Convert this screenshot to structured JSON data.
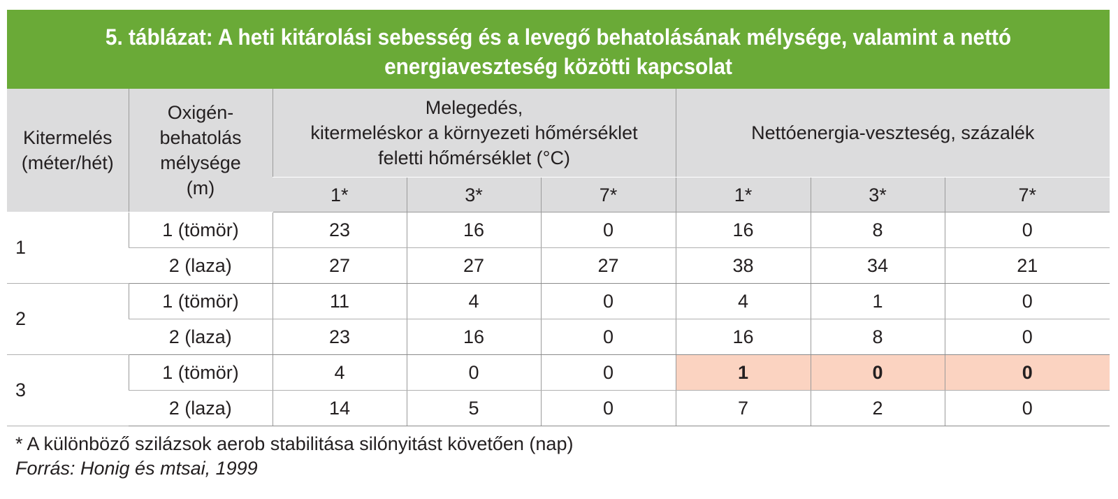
{
  "title": "5. táblázat: A heti kitárolási sebesség és a levegő behatolásának mélysége, valamint a nettó energiaveszteség közötti kapcsolat",
  "colors": {
    "title_bg": "#6aaa37",
    "header_bg": "#dcdcdd",
    "highlight": "#fbd3c1"
  },
  "headers": {
    "col1": "Kitermelés (méter/hét)",
    "col2": "Oxigén-behatolás mélysége (m)",
    "group1": "Melegedés, kitermeléskor a környezeti hőmérséklet feletti hőmérséklet (°C)",
    "group1_line1": "Melegedés,",
    "group1_line2": "kitermeléskor a környezeti hőmérséklet",
    "group1_line3": "feletti hőmérséklet (°C)",
    "group2": "Nettóenergia-veszteség, százalék",
    "sub": [
      "1*",
      "3*",
      "7*",
      "1*",
      "3*",
      "7*"
    ],
    "col1_line1": "Kitermelés",
    "col1_line2": "(méter/hét)",
    "col2_line1": "Oxigén-",
    "col2_line2": "behatolás",
    "col2_line3": "mélysége",
    "col2_line4": "(m)"
  },
  "groups": [
    {
      "production": "1",
      "rows": [
        {
          "depth": "1 (tömör)",
          "values": [
            "23",
            "16",
            "0",
            "16",
            "8",
            "0"
          ]
        },
        {
          "depth": "2 (laza)",
          "values": [
            "27",
            "27",
            "27",
            "38",
            "34",
            "21"
          ]
        }
      ]
    },
    {
      "production": "2",
      "rows": [
        {
          "depth": "1 (tömör)",
          "values": [
            "11",
            "4",
            "0",
            "4",
            "1",
            "0"
          ]
        },
        {
          "depth": "2 (laza)",
          "values": [
            "23",
            "16",
            "0",
            "16",
            "8",
            "0"
          ]
        }
      ]
    },
    {
      "production": "3",
      "rows": [
        {
          "depth": "1 (tömör)",
          "values": [
            "4",
            "0",
            "0",
            "1",
            "0",
            "0"
          ]
        },
        {
          "depth": "2 (laza)",
          "values": [
            "14",
            "5",
            "0",
            "7",
            "2",
            "0"
          ]
        }
      ]
    }
  ],
  "footnote": "* A különböző szilázsok aerob stabilitása silónyitást követően (nap)",
  "source": "Forrás: Honig és mtsai, 1999"
}
